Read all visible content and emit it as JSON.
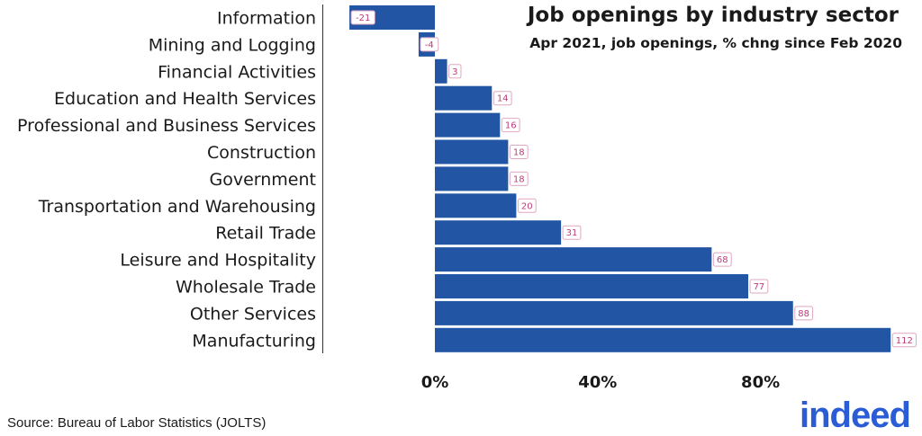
{
  "chart_data": {
    "type": "bar",
    "orientation": "horizontal",
    "title": "Job openings by industry sector",
    "subtitle": "Apr 2021, job openings, % chng since Feb 2020",
    "categories": [
      "Information",
      "Mining and Logging",
      "Financial Activities",
      "Education and Health Services",
      "Professional and Business Services",
      "Construction",
      "Government",
      "Transportation and Warehousing",
      "Retail Trade",
      "Leisure and Hospitality",
      "Wholesale Trade",
      "Other Services",
      "Manufacturing"
    ],
    "values": [
      -21,
      -4,
      3,
      14,
      16,
      18,
      18,
      20,
      31,
      68,
      77,
      88,
      112
    ],
    "data_labels": [
      "-21",
      "-4",
      "3",
      "14",
      "16",
      "18",
      "18",
      "20",
      "31",
      "68",
      "77",
      "88",
      "112"
    ],
    "xticks": [
      0,
      40,
      80
    ],
    "xtick_labels": [
      "0%",
      "40%",
      "80%"
    ],
    "xlim": [
      -28,
      116
    ],
    "grid": false,
    "bar_color": "#2255a4",
    "label_color": "#c0397a"
  },
  "source": "Source: Bureau of Labor Statistics (JOLTS)",
  "brand": "indeed"
}
